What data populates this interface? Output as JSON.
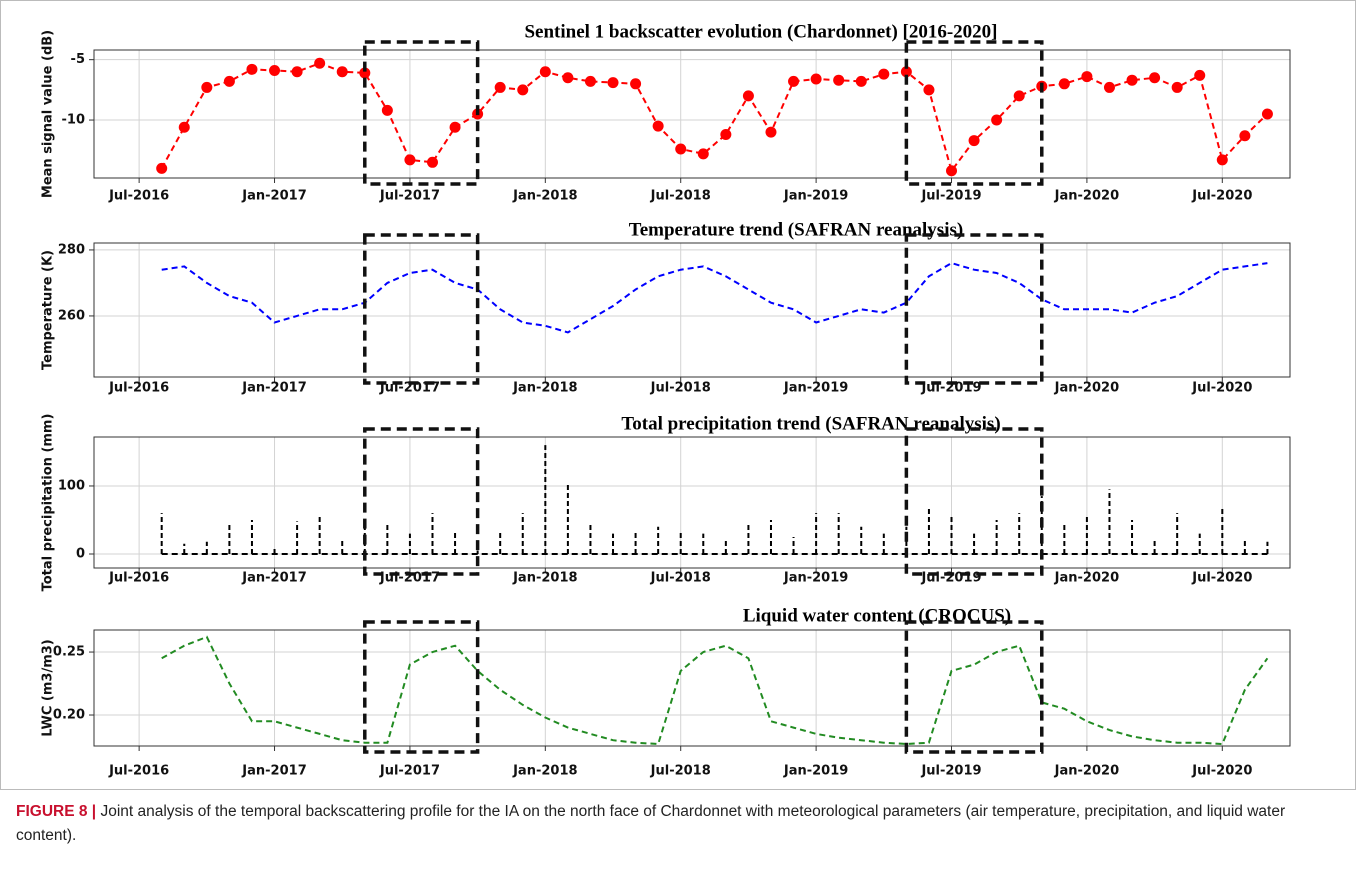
{
  "chart_data": [
    {
      "type": "line-markers",
      "title": "Sentinel 1 backscatter evolution (Chardonnet) [2016-2020]",
      "ylabel": "Mean signal value (dB)",
      "x": [
        "2016-08",
        "2016-09",
        "2016-10",
        "2016-11",
        "2016-12",
        "2017-01",
        "2017-02",
        "2017-03",
        "2017-04",
        "2017-05",
        "2017-06",
        "2017-07",
        "2017-08",
        "2017-09",
        "2017-10",
        "2017-11",
        "2017-12",
        "2018-01",
        "2018-02",
        "2018-03",
        "2018-04",
        "2018-05",
        "2018-06",
        "2018-07",
        "2018-08",
        "2018-09",
        "2018-10",
        "2018-11",
        "2018-12",
        "2019-01",
        "2019-02",
        "2019-03",
        "2019-04",
        "2019-05",
        "2019-06",
        "2019-07",
        "2019-08",
        "2019-09",
        "2019-10",
        "2019-11",
        "2019-12",
        "2020-01",
        "2020-02",
        "2020-03",
        "2020-04",
        "2020-05",
        "2020-06",
        "2020-07",
        "2020-08",
        "2020-09"
      ],
      "values": [
        -14,
        -10.6,
        -7.3,
        -6.8,
        -5.8,
        -5.9,
        -6.0,
        -5.3,
        -6.0,
        -6.1,
        -9.2,
        -13.3,
        -13.5,
        -10.6,
        -9.5,
        -7.3,
        -7.5,
        -6.0,
        -6.5,
        -6.8,
        -6.9,
        -7.0,
        -10.5,
        -12.4,
        -12.8,
        -11.2,
        -8.0,
        -11.0,
        -6.8,
        -6.6,
        -6.7,
        -6.8,
        -6.2,
        -6.0,
        -7.5,
        -14.2,
        -11.7,
        -10.0,
        -8.0,
        -7.2,
        -7.0,
        -6.4,
        -7.3,
        -6.7,
        -6.5,
        -7.3,
        -6.3,
        -13.3,
        -11.3,
        -9.5
      ],
      "color": "#ff0000",
      "ylim": [
        -14.8,
        -4.2
      ],
      "yticks": [
        -5,
        -10
      ],
      "xlim": [
        "2016-05",
        "2020-10"
      ],
      "xticks": [
        {
          "value": "2016-07",
          "label": "Jul-2016"
        },
        {
          "value": "2017-01",
          "label": "Jan-2017"
        },
        {
          "value": "2017-07",
          "label": "Jul-2017"
        },
        {
          "value": "2018-01",
          "label": "Jan-2018"
        },
        {
          "value": "2018-07",
          "label": "Jul-2018"
        },
        {
          "value": "2019-01",
          "label": "Jan-2019"
        },
        {
          "value": "2019-07",
          "label": "Jul-2019"
        },
        {
          "value": "2020-01",
          "label": "Jan-2020"
        },
        {
          "value": "2020-07",
          "label": "Jul-2020"
        }
      ],
      "grid": true,
      "highlight_periods": [
        [
          "2017-05",
          "2017-10"
        ],
        [
          "2019-05",
          "2019-11"
        ]
      ]
    },
    {
      "type": "line",
      "title": "Temperature trend (SAFRAN reanalysis)",
      "ylabel": "Temperature (K)",
      "x": [
        "2016-08",
        "2016-09",
        "2016-10",
        "2016-11",
        "2016-12",
        "2017-01",
        "2017-02",
        "2017-03",
        "2017-04",
        "2017-05",
        "2017-06",
        "2017-07",
        "2017-08",
        "2017-09",
        "2017-10",
        "2017-11",
        "2017-12",
        "2018-01",
        "2018-02",
        "2018-03",
        "2018-04",
        "2018-05",
        "2018-06",
        "2018-07",
        "2018-08",
        "2018-09",
        "2018-10",
        "2018-11",
        "2018-12",
        "2019-01",
        "2019-02",
        "2019-03",
        "2019-04",
        "2019-05",
        "2019-06",
        "2019-07",
        "2019-08",
        "2019-09",
        "2019-10",
        "2019-11",
        "2019-12",
        "2020-01",
        "2020-02",
        "2020-03",
        "2020-04",
        "2020-05",
        "2020-06",
        "2020-07",
        "2020-08",
        "2020-09"
      ],
      "values": [
        274,
        275,
        270,
        266,
        264,
        258,
        260,
        262,
        262,
        264,
        270,
        273,
        274,
        270,
        268,
        262,
        258,
        257,
        255,
        259,
        263,
        268,
        272,
        274,
        275,
        272,
        268,
        264,
        262,
        258,
        260,
        262,
        261,
        264,
        272,
        276,
        274,
        273,
        270,
        265,
        262,
        262,
        262,
        261,
        264,
        266,
        270,
        274,
        275,
        276
      ],
      "color": "#0000ff",
      "ylim": [
        241.5,
        282.1
      ],
      "yticks": [
        260,
        280
      ],
      "xlim": [
        "2016-05",
        "2020-10"
      ],
      "xticks": [
        {
          "value": "2016-07",
          "label": "Jul-2016"
        },
        {
          "value": "2017-01",
          "label": "Jan-2017"
        },
        {
          "value": "2017-07",
          "label": "Jul-2017"
        },
        {
          "value": "2018-01",
          "label": "Jan-2018"
        },
        {
          "value": "2018-07",
          "label": "Jul-2018"
        },
        {
          "value": "2019-01",
          "label": "Jan-2019"
        },
        {
          "value": "2019-07",
          "label": "Jul-2019"
        },
        {
          "value": "2020-01",
          "label": "Jan-2020"
        },
        {
          "value": "2020-07",
          "label": "Jul-2020"
        }
      ],
      "grid": true,
      "highlight_periods": [
        [
          "2017-05",
          "2017-10"
        ],
        [
          "2019-05",
          "2019-11"
        ]
      ]
    },
    {
      "type": "stem",
      "title": "Total precipitation trend (SAFRAN reanalysis)",
      "ylabel": "Total precipitation (mm)",
      "x": [
        "2016-08",
        "2016-09",
        "2016-10",
        "2016-11",
        "2016-12",
        "2017-01",
        "2017-02",
        "2017-03",
        "2017-04",
        "2017-05",
        "2017-06",
        "2017-07",
        "2017-08",
        "2017-09",
        "2017-10",
        "2017-11",
        "2017-12",
        "2018-01",
        "2018-02",
        "2018-03",
        "2018-04",
        "2018-05",
        "2018-06",
        "2018-07",
        "2018-08",
        "2018-09",
        "2018-10",
        "2018-11",
        "2018-12",
        "2019-01",
        "2019-02",
        "2019-03",
        "2019-04",
        "2019-05",
        "2019-06",
        "2019-07",
        "2019-08",
        "2019-09",
        "2019-10",
        "2019-11",
        "2019-12",
        "2020-01",
        "2020-02",
        "2020-03",
        "2020-04",
        "2020-05",
        "2020-06",
        "2020-07",
        "2020-08",
        "2020-09"
      ],
      "values": [
        60,
        15,
        18,
        45,
        50,
        10,
        48,
        55,
        20,
        40,
        45,
        30,
        60,
        35,
        5,
        35,
        60,
        160,
        105,
        45,
        30,
        35,
        40,
        35,
        30,
        20,
        45,
        50,
        25,
        60,
        60,
        40,
        30,
        40,
        70,
        55,
        30,
        50,
        60,
        85,
        45,
        55,
        95,
        50,
        20,
        60,
        30,
        70,
        20,
        18
      ],
      "color": "#000000",
      "ylim": [
        -20.6,
        172
      ],
      "yticks": [
        0,
        100
      ],
      "xlim": [
        "2016-05",
        "2020-10"
      ],
      "xticks": [
        {
          "value": "2016-07",
          "label": "Jul-2016"
        },
        {
          "value": "2017-01",
          "label": "Jan-2017"
        },
        {
          "value": "2017-07",
          "label": "Jul-2017"
        },
        {
          "value": "2018-01",
          "label": "Jan-2018"
        },
        {
          "value": "2018-07",
          "label": "Jul-2018"
        },
        {
          "value": "2019-01",
          "label": "Jan-2019"
        },
        {
          "value": "2019-07",
          "label": "Jul-2019"
        },
        {
          "value": "2020-01",
          "label": "Jan-2020"
        },
        {
          "value": "2020-07",
          "label": "Jul-2020"
        }
      ],
      "grid": true,
      "highlight_periods": [
        [
          "2017-05",
          "2017-10"
        ],
        [
          "2019-05",
          "2019-11"
        ]
      ]
    },
    {
      "type": "line",
      "title": "Liquid water content (CROCUS)",
      "ylabel": "LWC (m3/m3)",
      "x": [
        "2016-08",
        "2016-09",
        "2016-10",
        "2016-11",
        "2016-12",
        "2017-01",
        "2017-02",
        "2017-03",
        "2017-04",
        "2017-05",
        "2017-06",
        "2017-07",
        "2017-08",
        "2017-09",
        "2017-10",
        "2017-11",
        "2017-12",
        "2018-01",
        "2018-02",
        "2018-03",
        "2018-04",
        "2018-05",
        "2018-06",
        "2018-07",
        "2018-08",
        "2018-09",
        "2018-10",
        "2018-11",
        "2018-12",
        "2019-01",
        "2019-02",
        "2019-03",
        "2019-04",
        "2019-05",
        "2019-06",
        "2019-07",
        "2019-08",
        "2019-09",
        "2019-10",
        "2019-11",
        "2019-12",
        "2020-01",
        "2020-02",
        "2020-03",
        "2020-04",
        "2020-05",
        "2020-06",
        "2020-07",
        "2020-08",
        "2020-09"
      ],
      "values": [
        0.245,
        0.255,
        0.262,
        0.225,
        0.195,
        0.195,
        0.19,
        0.185,
        0.18,
        0.178,
        0.178,
        0.24,
        0.25,
        0.255,
        0.235,
        0.22,
        0.208,
        0.198,
        0.19,
        0.185,
        0.18,
        0.178,
        0.177,
        0.235,
        0.25,
        0.255,
        0.245,
        0.195,
        0.19,
        0.185,
        0.182,
        0.18,
        0.178,
        0.177,
        0.178,
        0.235,
        0.24,
        0.25,
        0.255,
        0.21,
        0.205,
        0.195,
        0.188,
        0.183,
        0.18,
        0.178,
        0.178,
        0.177,
        0.22,
        0.245
      ],
      "color": "#228b22",
      "ylim": [
        0.1754,
        0.2675
      ],
      "yticks": [
        {
          "value": 0.2,
          "label": "0.20"
        },
        0.25
      ],
      "xlim": [
        "2016-05",
        "2020-10"
      ],
      "xticks": [
        {
          "value": "2016-07",
          "label": "Jul-2016"
        },
        {
          "value": "2017-01",
          "label": "Jan-2017"
        },
        {
          "value": "2017-07",
          "label": "Jul-2017"
        },
        {
          "value": "2018-01",
          "label": "Jan-2018"
        },
        {
          "value": "2018-07",
          "label": "Jul-2018"
        },
        {
          "value": "2019-01",
          "label": "Jan-2019"
        },
        {
          "value": "2019-07",
          "label": "Jul-2019"
        },
        {
          "value": "2020-01",
          "label": "Jan-2020"
        },
        {
          "value": "2020-07",
          "label": "Jul-2020"
        }
      ],
      "grid": true,
      "highlight_periods": [
        [
          "2017-05",
          "2017-10"
        ],
        [
          "2019-05",
          "2019-11"
        ]
      ]
    }
  ],
  "caption": {
    "label": "FIGURE 8 |",
    "text": "Joint analysis of the temporal backscattering profile for the IA on the north face of Chardonnet with meteorological parameters (air temperature, precipitation, and liquid water content)."
  }
}
